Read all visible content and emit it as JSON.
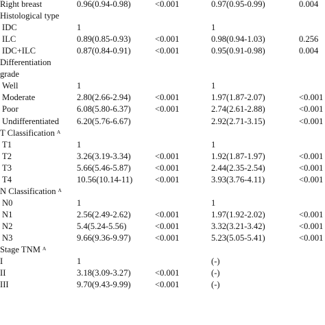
{
  "rows": [
    {
      "label": "Right breast",
      "hr1": "0.96(0.94-0.98)",
      "p1": "<0.001",
      "hr2": "0.97(0.95-0.99)",
      "p2": "0.004"
    },
    {
      "label": "Histological type",
      "hr1": "",
      "p1": "",
      "hr2": "",
      "p2": ""
    },
    {
      "label": "IDC",
      "hr1": "1",
      "p1": "",
      "hr2": "1",
      "p2": ""
    },
    {
      "label": "ILC",
      "hr1": "0.89(0.85-0.93)",
      "p1": "<0.001",
      "hr2": "0.98(0.94-1.03)",
      "p2": "0.256"
    },
    {
      "label": "IDC+ILC",
      "hr1": "0.87(0.84-0.91)",
      "p1": "<0.001",
      "hr2": "0.95(0.91-0.98)",
      "p2": "0.004"
    },
    {
      "label": "Differentiation",
      "hr1": "",
      "p1": "",
      "hr2": "",
      "p2": ""
    },
    {
      "label": "grade",
      "hr1": "",
      "p1": "",
      "hr2": "",
      "p2": ""
    },
    {
      "label": "Well",
      "hr1": "1",
      "p1": "",
      "hr2": "1",
      "p2": ""
    },
    {
      "label": "Moderate",
      "hr1": "2.80(2.66-2.94)",
      "p1": "<0.001",
      "hr2": "1.97(1.87-2.07)",
      "p2": "<0.001"
    },
    {
      "label": "Poor",
      "hr1": "6.08(5.80-6.37)",
      "p1": "<0.001",
      "hr2": "2.74(2.61-2.88)",
      "p2": "<0.001"
    },
    {
      "label": "Undifferentiated",
      "hr1": "6.20(5.76-6.67)",
      "p1": "",
      "hr2": "2.92(2.71-3.15)",
      "p2": "<0.001"
    },
    {
      "label": "T Classification",
      "sup": "A",
      "hr1": "",
      "p1": "",
      "hr2": "",
      "p2": ""
    },
    {
      "label": "T1",
      "hr1": "1",
      "p1": "",
      "hr2": "1",
      "p2": ""
    },
    {
      "label": "T2",
      "hr1": "3.26(3.19-3.34)",
      "p1": "<0.001",
      "hr2": "1.92(1.87-1.97)",
      "p2": "<0.001"
    },
    {
      "label": "T3",
      "hr1": "5.66(5.46-5.87)",
      "p1": "<0.001",
      "hr2": "2.44(2.35-2.54)",
      "p2": "<0.001"
    },
    {
      "label": "T4",
      "hr1": "10.56(10.14-11)",
      "p1": "<0.001",
      "hr2": "3.93(3.76-4.11)",
      "p2": "<0.001"
    },
    {
      "label": "N Classification",
      "sup": "A",
      "hr1": "",
      "p1": "",
      "hr2": "",
      "p2": ""
    },
    {
      "label": "N0",
      "hr1": "1",
      "p1": "",
      "hr2": "1",
      "p2": ""
    },
    {
      "label": "N1",
      "hr1": "2.56(2.49-2.62)",
      "p1": "<0.001",
      "hr2": "1.97(1.92-2.02)",
      "p2": "<0.001"
    },
    {
      "label": "N2",
      "hr1": "5.4(5.24-5.56)",
      "p1": "<0.001",
      "hr2": "3.32(3.21-3.42)",
      "p2": "<0.001"
    },
    {
      "label": "N3",
      "hr1": "9.66(9.36-9.97)",
      "p1": "<0.001",
      "hr2": "5.23(5.05-5.41)",
      "p2": "<0.001"
    },
    {
      "label": "Stage TNM",
      "sup": "A",
      "hr1": "",
      "p1": "",
      "hr2": "",
      "p2": ""
    },
    {
      "label": "I",
      "hr1": "1",
      "p1": "",
      "hr2": "(-)",
      "p2": ""
    },
    {
      "label": "II",
      "hr1": "3.18(3.09-3.27)",
      "p1": "<0.001",
      "hr2": "(-)",
      "p2": ""
    },
    {
      "label": "III",
      "hr1": "9.70(9.43-9.99)",
      "p1": "<0.001",
      "hr2": "(-)",
      "p2": ""
    }
  ]
}
